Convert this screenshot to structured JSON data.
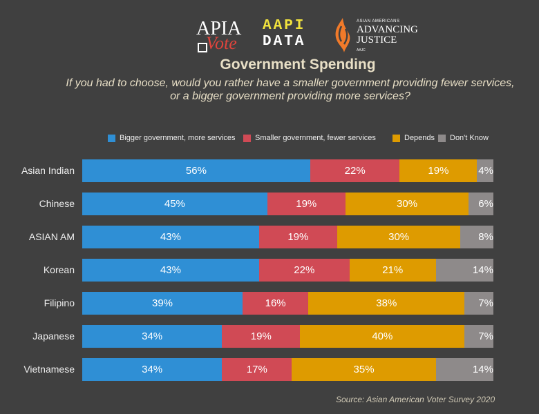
{
  "logos": {
    "apia_line1": "APIA",
    "apia_line2": "Vote",
    "aapi_line1": "AAPI",
    "aapi_line2": "DATA",
    "ajc_line1": "ASIAN AMERICANS",
    "ajc_line2": "ADVANCING",
    "ajc_line3": "JUSTICE",
    "ajc_line4": "AAJC"
  },
  "chart_data": {
    "type": "bar",
    "orientation": "horizontal",
    "stacked": true,
    "title": "Government Spending",
    "subtitle_line1": "If you had to choose, would you rather have a smaller government providing fewer services,",
    "subtitle_line2": "or a bigger government providing more services?",
    "categories": [
      "Asian Indian",
      "Chinese",
      "ASIAN AM",
      "Korean",
      "Filipino",
      "Japanese",
      "Vietnamese"
    ],
    "series": [
      {
        "name": "Bigger government, more services",
        "color": "#2f8fd5",
        "values": [
          56,
          45,
          43,
          43,
          39,
          34,
          34
        ]
      },
      {
        "name": "Smaller government, fewer services",
        "color": "#d04a55",
        "values": [
          22,
          19,
          19,
          22,
          16,
          19,
          17
        ]
      },
      {
        "name": "Depends",
        "color": "#de9b00",
        "values": [
          19,
          30,
          30,
          21,
          38,
          40,
          35
        ]
      },
      {
        "name": "Don't Know",
        "color": "#8e8a8a",
        "values": [
          4,
          6,
          8,
          14,
          7,
          7,
          14
        ]
      }
    ],
    "value_suffix": "%",
    "legend_position": "top",
    "source": "Source: Asian American Voter Survey 2020"
  }
}
